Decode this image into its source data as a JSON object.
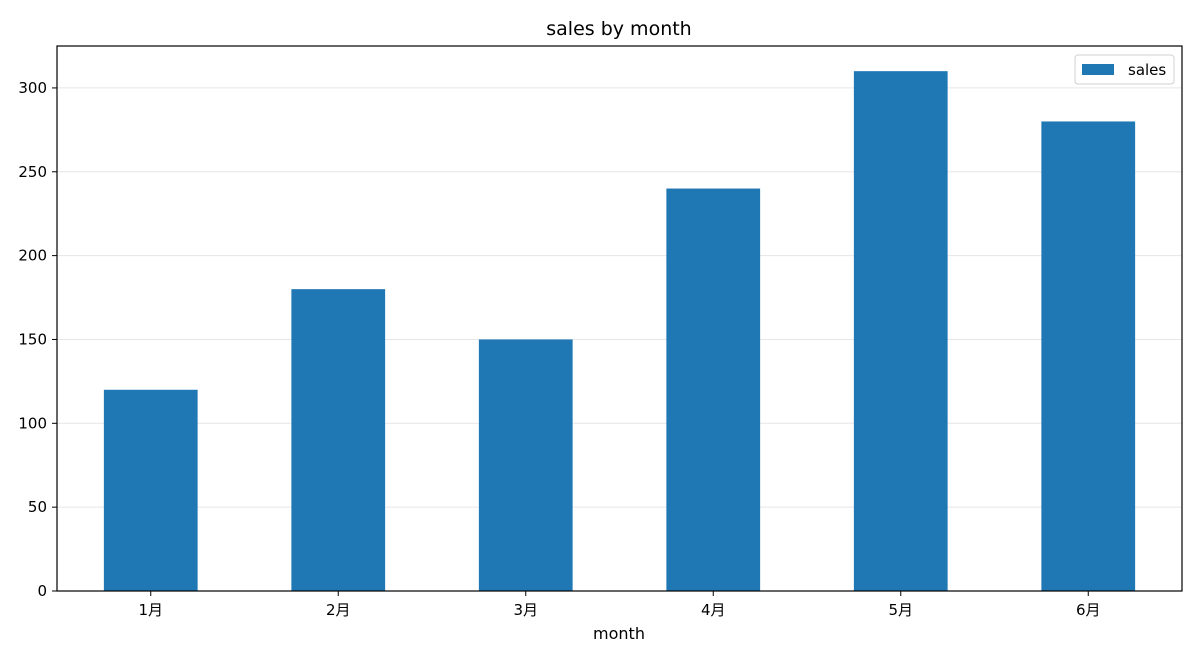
{
  "chart_data": {
    "type": "bar",
    "title": "sales by month",
    "xlabel": "month",
    "ylabel": "",
    "categories": [
      "1月",
      "2月",
      "3月",
      "4月",
      "5月",
      "6月"
    ],
    "series": [
      {
        "name": "sales",
        "values": [
          120,
          180,
          150,
          240,
          310,
          280
        ]
      }
    ],
    "ylim": [
      0,
      325
    ],
    "yticks": [
      0,
      50,
      100,
      150,
      200,
      250,
      300
    ],
    "grid": "horizontal",
    "legend": "top-right",
    "colors": {
      "bar": "#1f77b4",
      "grid": "#e6e6e6",
      "axis": "#000000"
    }
  }
}
